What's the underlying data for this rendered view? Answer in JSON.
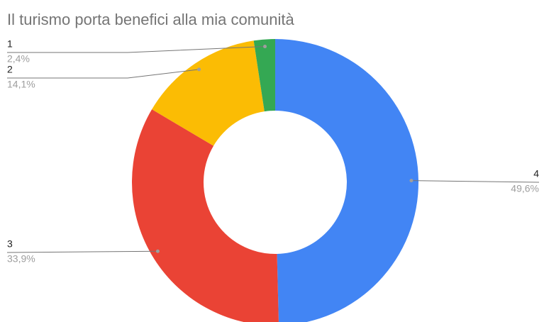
{
  "chart_data": {
    "type": "donut",
    "title": "Il turismo porta benefici alla mia comunità",
    "categories": [
      "4",
      "3",
      "2",
      "1"
    ],
    "values": [
      49.6,
      33.9,
      14.1,
      2.4
    ],
    "value_labels": [
      "49,6%",
      "33,9%",
      "14,1%",
      "2,4%"
    ],
    "colors": [
      "#4285f4",
      "#ea4335",
      "#fbbc04",
      "#34a853"
    ]
  }
}
